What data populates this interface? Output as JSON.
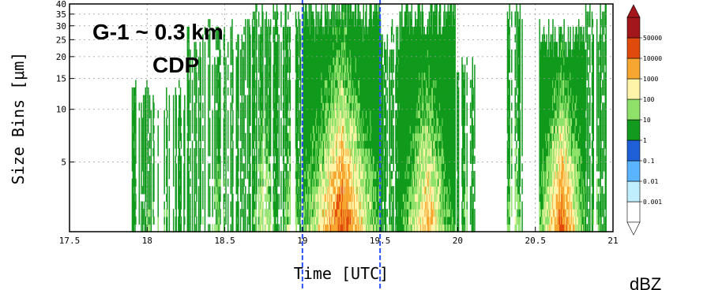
{
  "chart_data": {
    "type": "heatmap",
    "title": "",
    "xlabel": "Time [UTC]",
    "ylabel": "Size Bins [μm]",
    "annotation_line1": "G-1 ~ 0.3 km",
    "annotation_line2": "CDP",
    "unit_label": "dBZ",
    "xlim": [
      17.5,
      21
    ],
    "ylim": [
      2,
      40
    ],
    "y_scale": "log",
    "grid": true,
    "x_ticks": [
      17.5,
      18,
      18.5,
      19,
      19.5,
      20,
      20.5,
      21
    ],
    "x_tick_labels": [
      "17.5",
      "18",
      "18.5",
      "19",
      "19.5",
      "20",
      "20.5",
      "21"
    ],
    "y_ticks": [
      5,
      10,
      15,
      20,
      25,
      30,
      35,
      40
    ],
    "y_tick_labels": [
      "5",
      "10",
      "15",
      "20",
      "25",
      "30",
      "35",
      "40"
    ],
    "highlight_times": [
      19.0,
      19.5
    ],
    "highlight_color": "#2b50ff",
    "colorbar": {
      "levels": [
        "0.001",
        "0.01",
        "0.1",
        "1",
        "10",
        "100",
        "1000",
        "10000",
        "50000"
      ],
      "colors": [
        "#ffffff",
        "#bfeeff",
        "#5ab4ff",
        "#1f5fd8",
        "#119a1d",
        "#8ee26a",
        "#fff4a8",
        "#f7a631",
        "#e14a0d",
        "#a3161c"
      ]
    },
    "activity": [
      {
        "t0": 17.9,
        "t1": 18.25,
        "top": 14,
        "max_level": 5
      },
      {
        "t0": 18.25,
        "t1": 18.65,
        "top": 30,
        "max_level": 5
      },
      {
        "t0": 18.65,
        "t1": 18.85,
        "top": 40,
        "max_level": 6
      },
      {
        "t0": 18.85,
        "t1": 19.0,
        "top": 40,
        "max_level": 6
      },
      {
        "t0": 19.0,
        "t1": 19.5,
        "top": 40,
        "max_level": 8
      },
      {
        "t0": 19.5,
        "t1": 19.62,
        "top": 30,
        "max_level": 5
      },
      {
        "t0": 19.62,
        "t1": 19.98,
        "top": 40,
        "max_level": 7
      },
      {
        "t0": 19.98,
        "t1": 20.12,
        "top": 20,
        "max_level": 5
      },
      {
        "t0": 20.3,
        "t1": 20.42,
        "top": 40,
        "max_level": 6
      },
      {
        "t0": 20.52,
        "t1": 20.82,
        "top": 30,
        "max_level": 8
      },
      {
        "t0": 20.82,
        "t1": 20.96,
        "top": 40,
        "max_level": 5
      }
    ]
  }
}
